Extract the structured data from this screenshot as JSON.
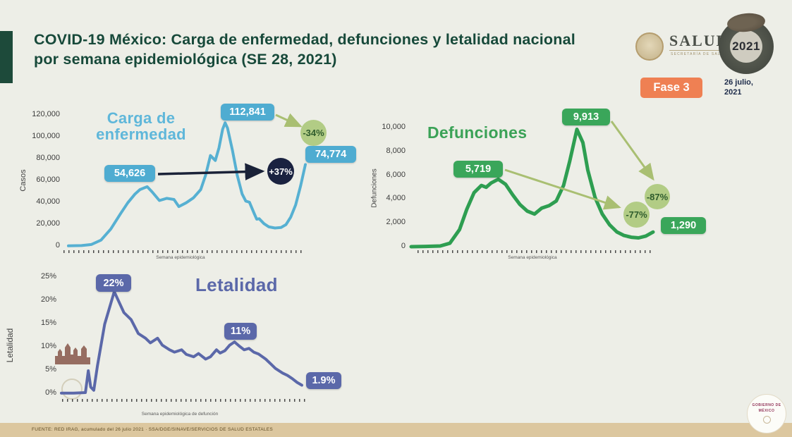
{
  "header": {
    "title": "COVID-19 México: Carga de enfermedad, defunciones y letalidad nacional por semana epidemiológica (SE 28, 2021)",
    "phase_badge": "Fase 3",
    "date_line1": "26 julio,",
    "date_line2": "2021",
    "salud_logo": "SALUD",
    "salud_logo_sub": "SECRETARÍA DE SALUD",
    "year_emblem": "2021"
  },
  "footer": {
    "source": "FUENTE: RED IRAG, acumulado del 26 julio 2021 · SSA/DGE/SINAVE/SERVICIOS DE SALUD ESTATALES",
    "gobierno_badge_line1": "GOBIERNO DE",
    "gobierno_badge_line2": "MÉXICO"
  },
  "colors": {
    "accent_green_dark": "#1d4a3a",
    "title_green": "#17493a",
    "casos_blue": "#56b0d2",
    "defunciones_green": "#2e9e51",
    "letalidad_slate": "#5b68a9",
    "change_circle_green": "#b2cc85",
    "change_circle_navy": "#1a2240",
    "arrow_olive": "#a9bf72",
    "phase_orange": "#ef8053",
    "footer_tan": "#dcc79f"
  },
  "chart_data": [
    {
      "id": "carga-de-enfermedad",
      "type": "line",
      "title": "Carga de enfermedad",
      "ylabel": "Casos",
      "xlabel": "Semana epidemiológica",
      "ylim": [
        0,
        120000
      ],
      "yticks": [
        "120,000",
        "100,000",
        "80,000",
        "60,000",
        "40,000",
        "20,000",
        "0"
      ],
      "grid": false,
      "color": "#56b0d2",
      "x": [
        0.026,
        0.08,
        0.12,
        0.16,
        0.2,
        0.24,
        0.27,
        0.3,
        0.32,
        0.35,
        0.37,
        0.4,
        0.43,
        0.46,
        0.48,
        0.51,
        0.54,
        0.57,
        0.59,
        0.61,
        0.63,
        0.645,
        0.66,
        0.67,
        0.68,
        0.7,
        0.72,
        0.74,
        0.755,
        0.77,
        0.79,
        0.8,
        0.81,
        0.83,
        0.85,
        0.875,
        0.9,
        0.92,
        0.94,
        0.96,
        0.98,
        1.0
      ],
      "values": [
        800,
        1000,
        2000,
        6000,
        16000,
        30000,
        40000,
        48000,
        52000,
        54626,
        50000,
        42000,
        44000,
        43000,
        36500,
        40000,
        44500,
        52000,
        65000,
        83000,
        78500,
        90000,
        107000,
        112841,
        108000,
        88000,
        65000,
        48000,
        41500,
        40500,
        30000,
        25000,
        25500,
        21000,
        18000,
        17000,
        17500,
        20000,
        27000,
        38000,
        55000,
        74774
      ],
      "labels": {
        "peak1": "54,626",
        "peak2": "112,841",
        "latest": "74,774",
        "change_vs_peak1": "+37%",
        "change_vs_peak2": "-34%"
      }
    },
    {
      "id": "defunciones",
      "type": "line",
      "title": "Defunciones",
      "ylabel": "Defunciones",
      "xlabel": "Semana epidemiológica",
      "ylim": [
        0,
        10000
      ],
      "yticks": [
        "10,000",
        "8,000",
        "6,000",
        "4,000",
        "2,000",
        "0"
      ],
      "grid": false,
      "color": "#2e9e51",
      "x": [
        0,
        0.06,
        0.12,
        0.16,
        0.2,
        0.23,
        0.26,
        0.29,
        0.31,
        0.33,
        0.36,
        0.39,
        0.42,
        0.45,
        0.48,
        0.51,
        0.54,
        0.57,
        0.6,
        0.63,
        0.655,
        0.685,
        0.71,
        0.73,
        0.76,
        0.79,
        0.82,
        0.85,
        0.88,
        0.91,
        0.94,
        0.97,
        1.0
      ],
      "values": [
        60,
        80,
        120,
        350,
        1500,
        3200,
        4600,
        5200,
        5050,
        5400,
        5719,
        5300,
        4400,
        3600,
        3050,
        2800,
        3300,
        3500,
        3900,
        5200,
        7200,
        9913,
        8800,
        6500,
        4200,
        2800,
        1900,
        1300,
        1000,
        850,
        800,
        950,
        1290
      ],
      "labels": {
        "peak1": "5,719",
        "peak2": "9,913",
        "latest": "1,290",
        "change_vs_peak1": "-77%",
        "change_vs_peak2": "-87%"
      }
    },
    {
      "id": "letalidad",
      "type": "line",
      "title": "Letalidad",
      "ylabel": "Letalidad",
      "xlabel": "Semana epidemiológica de defunción",
      "ylim": [
        0,
        25
      ],
      "yticks": [
        "25%",
        "20%",
        "15%",
        "10%",
        "5%",
        "0%"
      ],
      "grid": false,
      "color": "#5b68a9",
      "x": [
        0,
        0.05,
        0.1,
        0.112,
        0.122,
        0.135,
        0.15,
        0.18,
        0.22,
        0.26,
        0.29,
        0.32,
        0.35,
        0.37,
        0.4,
        0.42,
        0.45,
        0.47,
        0.5,
        0.52,
        0.55,
        0.57,
        0.6,
        0.62,
        0.645,
        0.66,
        0.68,
        0.7,
        0.72,
        0.74,
        0.76,
        0.78,
        0.8,
        0.82,
        0.85,
        0.87,
        0.89,
        0.92,
        0.94,
        0.96,
        0.98,
        1.0
      ],
      "values": [
        0.2,
        0.2,
        0.3,
        5.0,
        1.5,
        0.8,
        6.0,
        15.0,
        22.0,
        17.5,
        16.0,
        13.0,
        12.0,
        11.0,
        12.0,
        10.5,
        9.5,
        9.0,
        9.5,
        8.5,
        8.0,
        8.7,
        7.5,
        8.0,
        9.5,
        8.8,
        9.3,
        10.5,
        11.2,
        10.3,
        9.5,
        9.8,
        9.0,
        8.6,
        7.5,
        6.5,
        5.5,
        4.5,
        4.0,
        3.3,
        2.5,
        1.9
      ],
      "labels": {
        "peak1": "22%",
        "peak2": "11%",
        "latest": "1.9%"
      }
    }
  ]
}
